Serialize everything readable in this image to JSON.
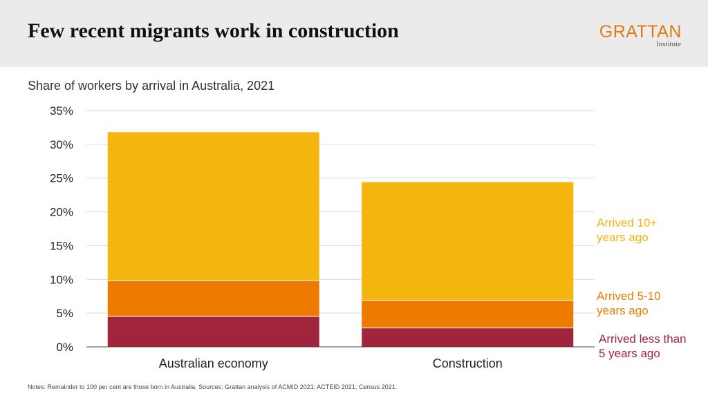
{
  "header": {
    "title": "Few recent migrants work in construction",
    "logo_main": "GRATTAN",
    "logo_sub": "Institute"
  },
  "footer": {
    "notes": "Notes: Remainder to 100 per cent are those born in Australia. Sources: Grattan analysis of ACMID 2021; ACTEID 2021; Census 2021."
  },
  "chart_data": {
    "type": "bar",
    "stacked": true,
    "title": "Share of workers by arrival in Australia, 2021",
    "categories": [
      "Australian economy",
      "Construction"
    ],
    "series": [
      {
        "name": "Arrived less than 5 years ago",
        "label_lines": [
          "Arrived less than",
          "5 years ago"
        ],
        "values": [
          4.5,
          2.8
        ],
        "color": "#a1243d"
      },
      {
        "name": "Arrived 5-10 years ago",
        "label_lines": [
          "Arrived 5-10",
          "years ago"
        ],
        "values": [
          5.3,
          4.1
        ],
        "color": "#ee7b00"
      },
      {
        "name": "Arrived 10+ years ago",
        "label_lines": [
          "Arrived 10+",
          "years ago"
        ],
        "values": [
          22.0,
          17.5
        ],
        "color": "#f4b50f"
      }
    ],
    "ylim": [
      0,
      35
    ],
    "yticks": [
      0,
      5,
      10,
      15,
      20,
      25,
      30,
      35
    ],
    "ytick_labels": [
      "0%",
      "5%",
      "10%",
      "15%",
      "20%",
      "25%",
      "30%",
      "35%"
    ],
    "grid": true,
    "legend": "right, direct labels"
  }
}
